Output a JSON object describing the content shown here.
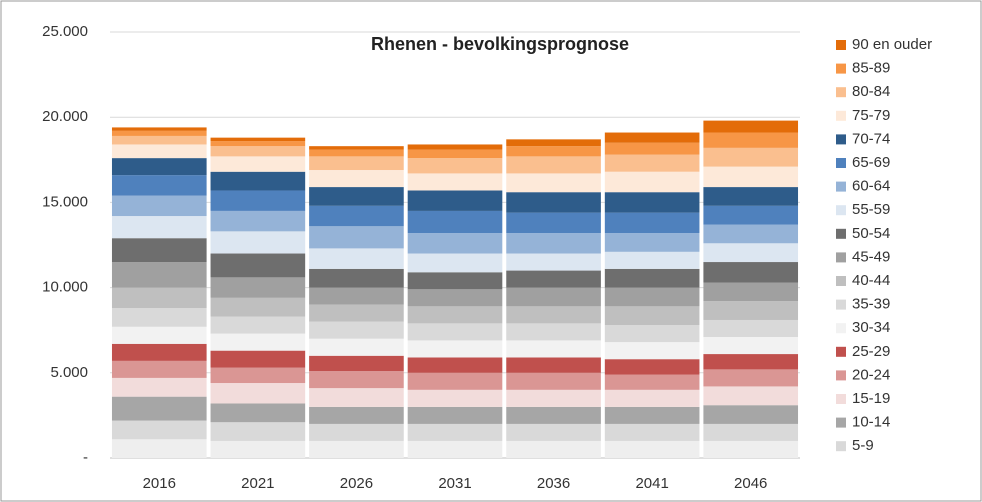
{
  "chart_data": {
    "type": "stacked_bar",
    "title": "Rhenen - bevolkingsprognose",
    "categories": [
      "2016",
      "2021",
      "2026",
      "2031",
      "2036",
      "2041",
      "2046"
    ],
    "series": [
      {
        "color": "#eeeeee",
        "values": [
          1100,
          1000,
          1000,
          1000,
          1000,
          1000,
          1000
        ]
      },
      {
        "name": "5-9",
        "color": "#d9d9d9",
        "values": [
          1100,
          1100,
          1000,
          1000,
          1000,
          1000,
          1000
        ]
      },
      {
        "name": "10-14",
        "color": "#a6a6a6",
        "values": [
          1400,
          1100,
          1000,
          1000,
          1000,
          1000,
          1100
        ]
      },
      {
        "name": "15-19",
        "color": "#f2dcdb",
        "values": [
          1100,
          1200,
          1100,
          1000,
          1000,
          1000,
          1100
        ]
      },
      {
        "name": "20-24",
        "color": "#da9694",
        "values": [
          1000,
          900,
          1000,
          1000,
          1000,
          900,
          1000
        ]
      },
      {
        "name": "25-29",
        "color": "#c0504d",
        "values": [
          1000,
          1000,
          900,
          900,
          900,
          900,
          900
        ]
      },
      {
        "name": "30-34",
        "color": "#f2f2f2",
        "values": [
          1000,
          1000,
          1000,
          1000,
          1000,
          1000,
          1000
        ]
      },
      {
        "name": "35-39",
        "color": "#d9d9d9",
        "values": [
          1100,
          1000,
          1000,
          1000,
          1000,
          1000,
          1000
        ]
      },
      {
        "name": "40-44",
        "color": "#bfbfbf",
        "values": [
          1200,
          1100,
          1000,
          1000,
          1000,
          1100,
          1100
        ]
      },
      {
        "name": "45-49",
        "color": "#a0a0a0",
        "values": [
          1500,
          1200,
          1000,
          1000,
          1100,
          1100,
          1100
        ]
      },
      {
        "name": "50-54",
        "color": "#6e6e6e",
        "values": [
          1400,
          1400,
          1100,
          1000,
          1000,
          1100,
          1200
        ]
      },
      {
        "name": "55-59",
        "color": "#dce6f1",
        "values": [
          1300,
          1300,
          1200,
          1100,
          1000,
          1000,
          1100
        ]
      },
      {
        "name": "60-64",
        "color": "#95b3d7",
        "values": [
          1200,
          1200,
          1300,
          1200,
          1200,
          1100,
          1100
        ]
      },
      {
        "name": "65-69",
        "color": "#4f81bd",
        "values": [
          1200,
          1200,
          1200,
          1300,
          1200,
          1200,
          1100
        ]
      },
      {
        "name": "70-74",
        "color": "#2e5c8a",
        "values": [
          1000,
          1100,
          1100,
          1200,
          1200,
          1200,
          1100
        ]
      },
      {
        "name": "75-79",
        "color": "#fde9d9",
        "values": [
          800,
          900,
          1000,
          1000,
          1100,
          1200,
          1200
        ]
      },
      {
        "name": "80-84",
        "color": "#fabf8f",
        "values": [
          500,
          600,
          800,
          900,
          1000,
          1000,
          1100
        ]
      },
      {
        "name": "85-89",
        "color": "#f79646",
        "values": [
          300,
          300,
          400,
          500,
          600,
          700,
          900
        ]
      },
      {
        "name": "90 en ouder",
        "color": "#e36c09",
        "values": [
          200,
          200,
          200,
          300,
          400,
          600,
          700
        ]
      }
    ],
    "ylim": [
      0,
      25000
    ],
    "yticks": [
      {
        "value": 0,
        "label": "-"
      },
      {
        "value": 5000,
        "label": "5.000"
      },
      {
        "value": 10000,
        "label": "10.000"
      },
      {
        "value": 15000,
        "label": "15.000"
      },
      {
        "value": 20000,
        "label": "20.000"
      },
      {
        "value": 25000,
        "label": "25.000"
      }
    ],
    "grid": true,
    "legend": "right"
  }
}
